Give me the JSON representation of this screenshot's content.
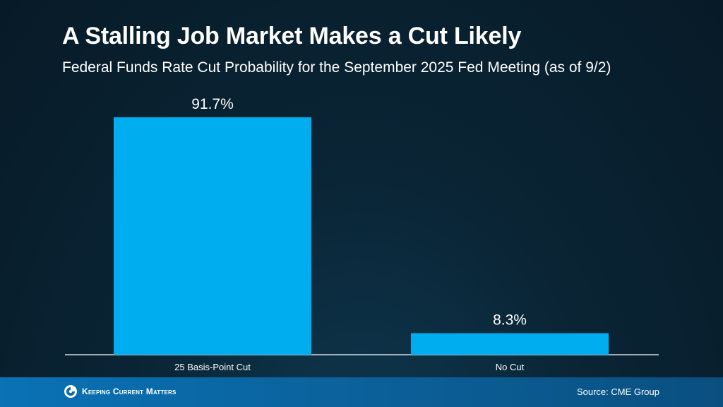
{
  "header": {
    "title": "A Stalling Job Market Makes a Cut Likely",
    "subtitle": "Federal Funds Rate Cut Probability for the September 2025 Fed Meeting (as of 9/2)"
  },
  "chart_data": {
    "type": "bar",
    "categories": [
      "25 Basis-Point Cut",
      "No Cut"
    ],
    "values": [
      91.7,
      8.3
    ],
    "data_labels": [
      "91.7%",
      "8.3%"
    ],
    "ylim": [
      0,
      100
    ],
    "grid": false,
    "bar_color": "#00adef"
  },
  "footer": {
    "logo_text": "Keeping Current Matters",
    "source": "Source: CME Group"
  },
  "colors": {
    "background": "#0a2536",
    "bar": "#00adef",
    "footer": "#0a6aa8"
  }
}
